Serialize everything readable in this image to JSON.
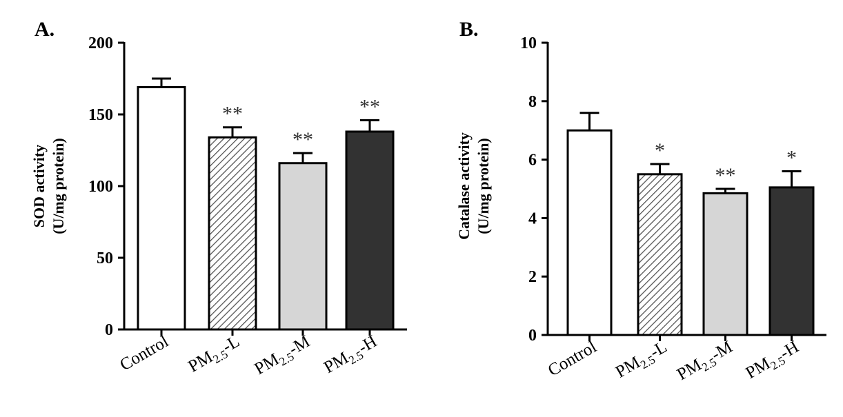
{
  "colors": {
    "axis": "#000000",
    "control_fill": "#ffffff",
    "low_fill": "hatched",
    "mid_fill": "#d6d6d6",
    "high_fill": "#323232"
  },
  "chart_data": [
    {
      "panel": "A.",
      "type": "bar",
      "categories": [
        "Control",
        "PM2.5-L",
        "PM2.5-M",
        "PM2.5-H"
      ],
      "category_display": [
        {
          "main": "Control",
          "sub": "",
          "suffix": ""
        },
        {
          "main": "PM",
          "sub": "2.5",
          "suffix": "-L"
        },
        {
          "main": "PM",
          "sub": "2.5",
          "suffix": "-M"
        },
        {
          "main": "PM",
          "sub": "2.5",
          "suffix": "-H"
        }
      ],
      "values": [
        169,
        134,
        116,
        138
      ],
      "errors": [
        6,
        7,
        7,
        8
      ],
      "significance": [
        "",
        "**",
        "**",
        "**"
      ],
      "ylabel_line1": "SOD activity",
      "ylabel_line2": "(U/mg protein)",
      "ylim": [
        0,
        200
      ],
      "yticks": [
        0,
        50,
        100,
        150,
        200
      ],
      "grid": false
    },
    {
      "panel": "B.",
      "type": "bar",
      "categories": [
        "Control",
        "PM2.5-L",
        "PM2.5-M",
        "PM2.5-H"
      ],
      "category_display": [
        {
          "main": "Control",
          "sub": "",
          "suffix": ""
        },
        {
          "main": "PM",
          "sub": "2.5",
          "suffix": "-L"
        },
        {
          "main": "PM",
          "sub": "2.5",
          "suffix": "-M"
        },
        {
          "main": "PM",
          "sub": "2.5",
          "suffix": "-H"
        }
      ],
      "values": [
        7.0,
        5.5,
        4.85,
        5.05
      ],
      "errors": [
        0.6,
        0.35,
        0.15,
        0.55
      ],
      "significance": [
        "",
        "*",
        "**",
        "*"
      ],
      "ylabel_line1": "Catalase activity",
      "ylabel_line2": "(U/mg protein)",
      "ylim": [
        0,
        10
      ],
      "yticks": [
        0,
        2,
        4,
        6,
        8,
        10
      ],
      "grid": false
    }
  ]
}
